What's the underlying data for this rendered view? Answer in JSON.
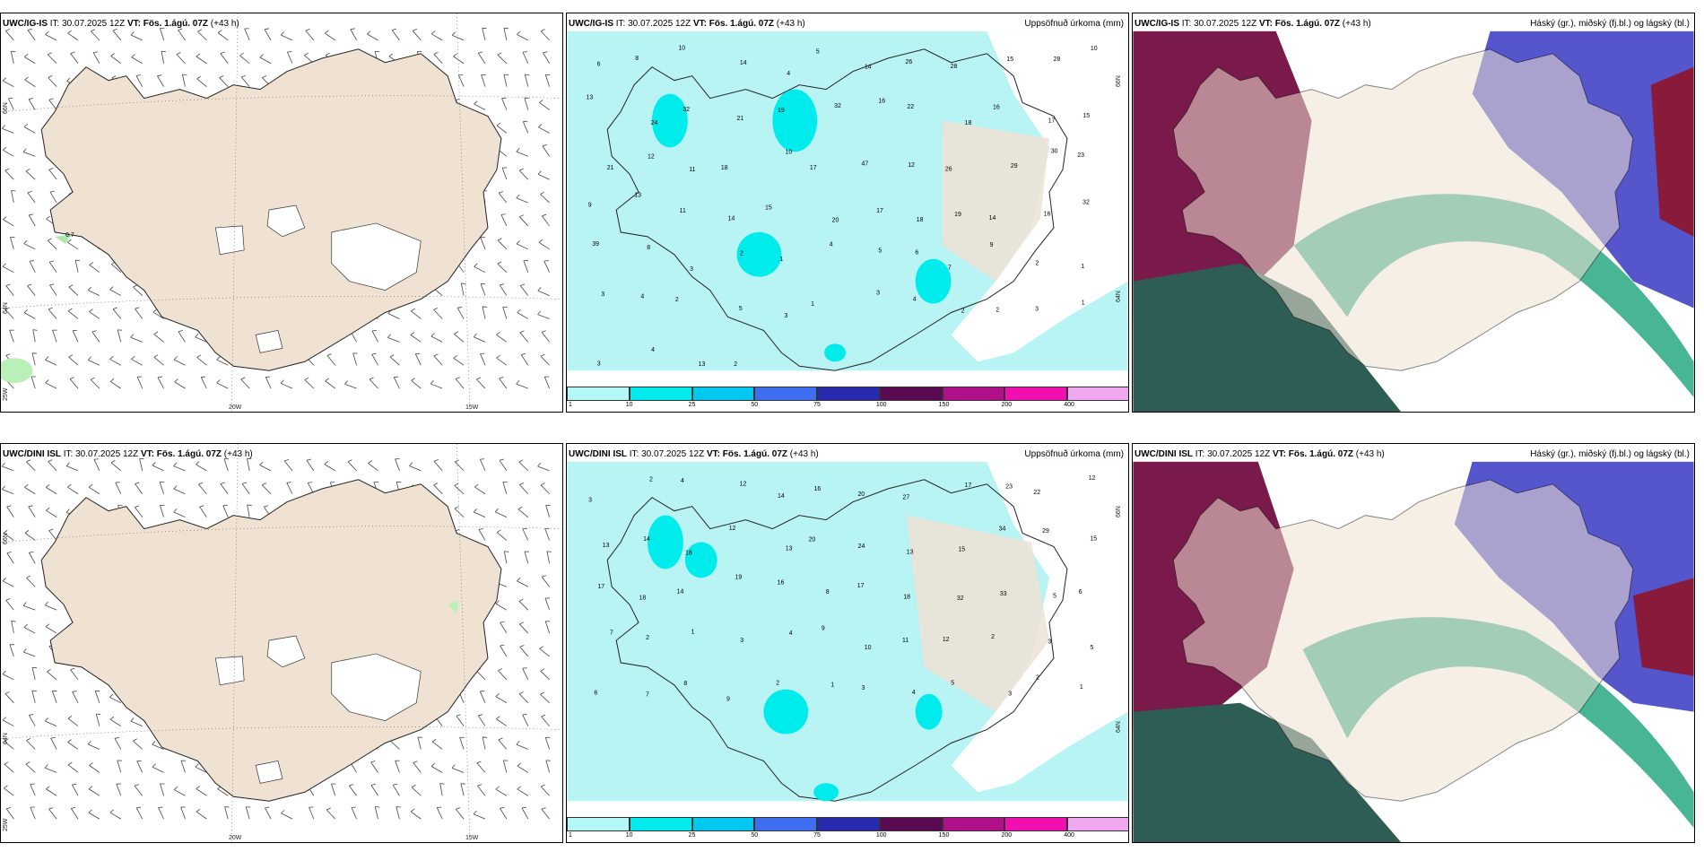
{
  "panels": [
    {
      "model": "UWC/IG-IS",
      "it_label": "IT:",
      "it_value": "30.07.2025 12Z",
      "vt_label": "VT:",
      "vt_value": "Fös. 1.ágú. 07Z",
      "lead": "(+43 h)",
      "variable": "",
      "lat_labels": [
        "66N",
        "64N",
        "25W"
      ],
      "lon_labels": [
        "20W",
        "15W"
      ],
      "point_values": [
        "0.7"
      ]
    },
    {
      "model": "UWC/IG-IS",
      "it_label": "IT:",
      "it_value": "30.07.2025 12Z",
      "vt_label": "VT:",
      "vt_value": "Fös. 1.ágú. 07Z",
      "lead": "(+43 h)",
      "variable": "Uppsöfnuð úrkoma (mm)",
      "lat_labels": [
        "66N",
        "64N"
      ],
      "point_values": [
        "6",
        "8",
        "10",
        "14",
        "4",
        "5",
        "14",
        "26",
        "28",
        "15",
        "28",
        "10",
        "13",
        "24",
        "32",
        "21",
        "19",
        "32",
        "16",
        "22",
        "18",
        "16",
        "17",
        "15",
        "21",
        "12",
        "11",
        "18",
        "10",
        "17",
        "47",
        "12",
        "26",
        "29",
        "30",
        "23",
        "9",
        "13",
        "11",
        "14",
        "15",
        "20",
        "17",
        "18",
        "19",
        "14",
        "16",
        "32",
        "39",
        "8",
        "3",
        "2",
        "1",
        "4",
        "5",
        "6",
        "7",
        "9",
        "2",
        "1",
        "3",
        "4",
        "2",
        "5",
        "3",
        "1",
        "3",
        "4",
        "2",
        "2",
        "3",
        "1",
        "3",
        "4",
        "13",
        "2"
      ]
    },
    {
      "model": "UWC/IG-IS",
      "it_label": "IT:",
      "it_value": "30.07.2025 12Z",
      "vt_label": "VT:",
      "vt_value": "Fös. 1.ágú. 07Z",
      "lead": "(+43 h)",
      "variable": "Háský (gr.), miðský (fj.bl.) og lágský (bl.)"
    },
    {
      "model": "UWC/DINI ISL",
      "it_label": "IT:",
      "it_value": "30.07.2025 12Z",
      "vt_label": "VT:",
      "vt_value": "Fös. 1.ágú. 07Z",
      "lead": "(+43 h)",
      "variable": "",
      "lat_labels": [
        "66N",
        "64N",
        "25W"
      ],
      "lon_labels": [
        "20W",
        "15W"
      ]
    },
    {
      "model": "UWC/DINI ISL",
      "it_label": "IT:",
      "it_value": "30.07.2025 12Z",
      "vt_label": "VT:",
      "vt_value": "Fös. 1.ágú. 07Z",
      "lead": "(+43 h)",
      "variable": "Uppsöfnuð úrkoma (mm)",
      "lat_labels": [
        "66N",
        "64N"
      ],
      "point_values": [
        "3",
        "2",
        "4",
        "12",
        "14",
        "16",
        "20",
        "27",
        "17",
        "23",
        "22",
        "12",
        "13",
        "14",
        "18",
        "12",
        "13",
        "20",
        "24",
        "13",
        "15",
        "34",
        "29",
        "15",
        "17",
        "18",
        "14",
        "19",
        "16",
        "8",
        "17",
        "18",
        "32",
        "33",
        "5",
        "6",
        "7",
        "2",
        "1",
        "3",
        "4",
        "9",
        "10",
        "11",
        "12",
        "2",
        "3",
        "5",
        "6",
        "7",
        "8",
        "9",
        "2",
        "1",
        "3",
        "4",
        "5",
        "3",
        "2",
        "1"
      ]
    },
    {
      "model": "UWC/DINI ISL",
      "it_label": "IT:",
      "it_value": "30.07.2025 12Z",
      "vt_label": "VT:",
      "vt_value": "Fös. 1.ágú. 07Z",
      "lead": "(+43 h)",
      "variable": "Háský (gr.), miðský (fj.bl.) og lágský (bl.)"
    }
  ],
  "precip_colorbar": {
    "ticks": [
      "1",
      "10",
      "25",
      "50",
      "75",
      "100",
      "150",
      "200",
      "400"
    ],
    "colors": [
      "#b3f7f7",
      "#00ebeb",
      "#00c8f0",
      "#3d6ff0",
      "#2a2ab0",
      "#5a0a50",
      "#b0108a",
      "#f010b0",
      "#f0a8f0"
    ]
  },
  "colors": {
    "land": "#efe2d3",
    "sea_precip": "#b9f4f4",
    "cloud_low": "#5555cc",
    "cloud_mid": "#7a1a4a",
    "cloud_high": "#1aa37a",
    "dark_sea": "#2e5d55"
  }
}
